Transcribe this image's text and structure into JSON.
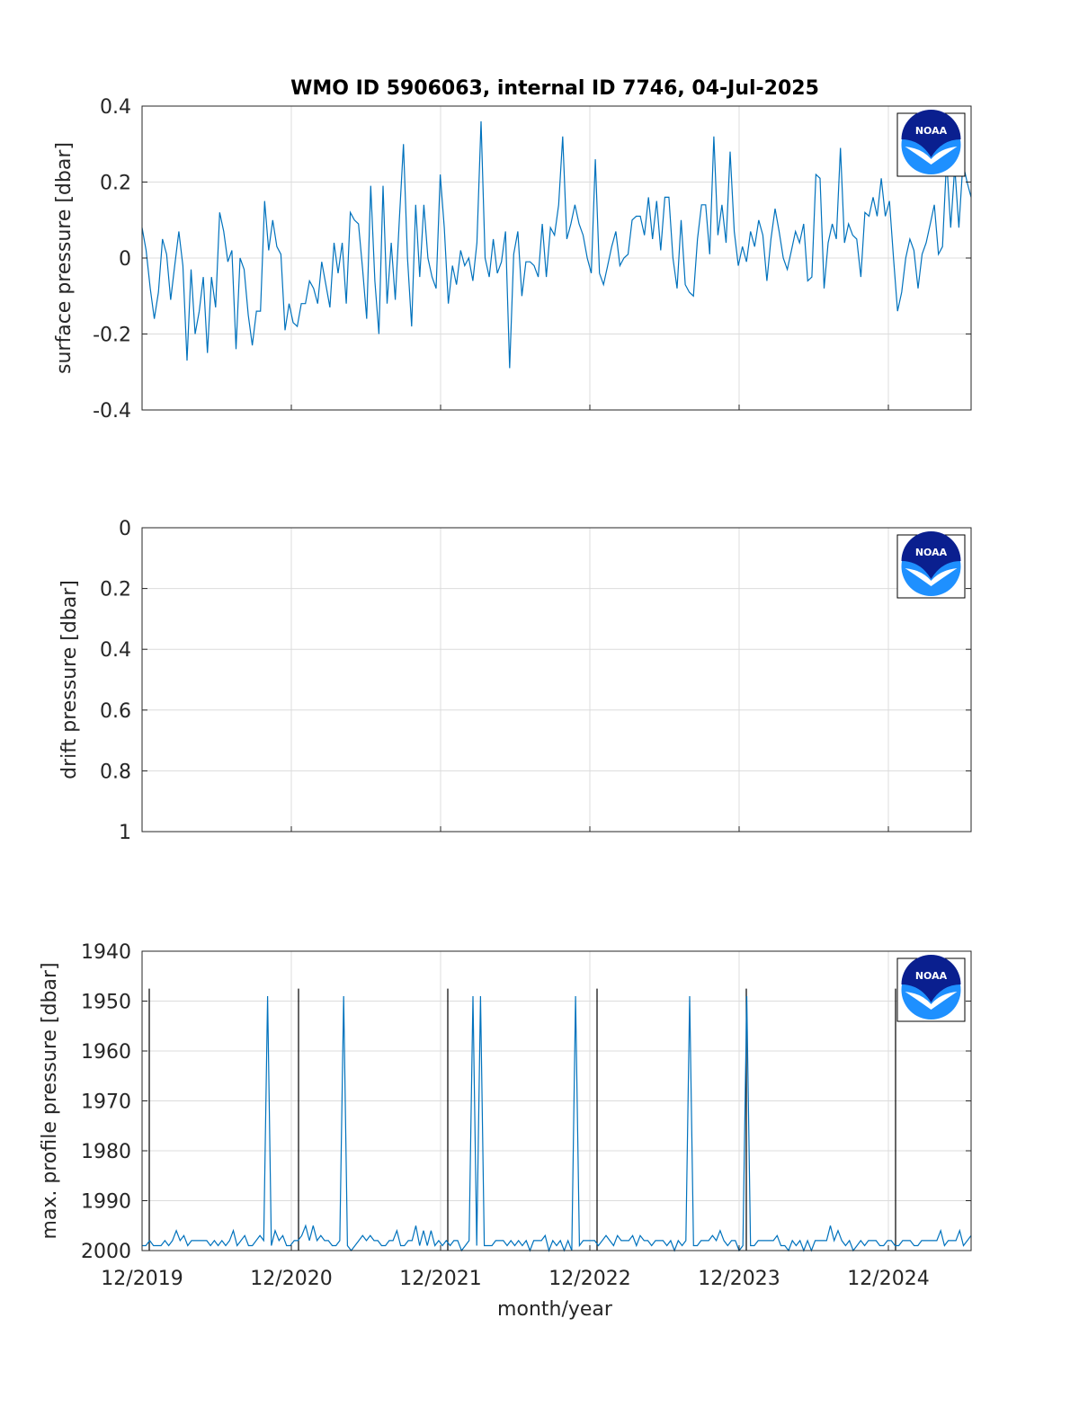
{
  "title": "WMO ID 5906063, internal ID 7746, 04-Jul-2025",
  "xlabel": "month/year",
  "x_tick_labels": [
    "12/2019",
    "12/2020",
    "12/2021",
    "12/2022",
    "12/2023",
    "12/2024"
  ],
  "logo_text": "NOAA",
  "colors": {
    "series": "#0072BD",
    "logo_dark": "#0a1f8f",
    "logo_light": "#1e90ff"
  },
  "chart_data": [
    {
      "type": "line",
      "ylabel": "surface pressure [dbar]",
      "ylim": [
        -0.4,
        0.4
      ],
      "y_reversed": false,
      "y_tick_labels": [
        "-0.4",
        "-0.2",
        "0",
        "0.2",
        "0.4"
      ],
      "grid": true,
      "x_range": [
        "2019-12",
        "2025-07"
      ],
      "series": [
        {
          "values": [
            0.08,
            0.02,
            -0.08,
            -0.16,
            -0.09,
            0.05,
            0.01,
            -0.11,
            -0.02,
            0.07,
            -0.02,
            -0.27,
            -0.03,
            -0.2,
            -0.14,
            -0.05,
            -0.25,
            -0.05,
            -0.13,
            0.12,
            0.07,
            -0.01,
            0.02,
            -0.24,
            0.0,
            -0.03,
            -0.15,
            -0.23,
            -0.14,
            -0.14,
            0.15,
            0.02,
            0.1,
            0.03,
            0.01,
            -0.19,
            -0.12,
            -0.17,
            -0.18,
            -0.12,
            -0.12,
            -0.06,
            -0.08,
            -0.12,
            -0.01,
            -0.07,
            -0.13,
            0.04,
            -0.04,
            0.04,
            -0.12,
            0.12,
            0.1,
            0.09,
            -0.03,
            -0.16,
            0.19,
            -0.06,
            -0.2,
            0.19,
            -0.12,
            0.04,
            -0.11,
            0.1,
            0.3,
            0.0,
            -0.18,
            0.14,
            -0.05,
            0.14,
            0.0,
            -0.05,
            -0.08,
            0.22,
            0.08,
            -0.12,
            -0.02,
            -0.07,
            0.02,
            -0.02,
            0.0,
            -0.06,
            0.04,
            0.36,
            0.0,
            -0.05,
            0.05,
            -0.04,
            -0.01,
            0.07,
            -0.29,
            0.01,
            0.07,
            -0.1,
            -0.01,
            -0.01,
            -0.02,
            -0.05,
            0.09,
            -0.05,
            0.08,
            0.06,
            0.14,
            0.32,
            0.05,
            0.09,
            0.14,
            0.09,
            0.06,
            0.0,
            -0.04,
            0.26,
            -0.04,
            -0.07,
            -0.02,
            0.03,
            0.07,
            -0.02,
            0.0,
            0.01,
            0.1,
            0.11,
            0.11,
            0.06,
            0.16,
            0.05,
            0.15,
            0.02,
            0.16,
            0.16,
            0.0,
            -0.08,
            0.1,
            -0.07,
            -0.09,
            -0.1,
            0.05,
            0.14,
            0.14,
            0.01,
            0.32,
            0.06,
            0.14,
            0.04,
            0.28,
            0.07,
            -0.02,
            0.03,
            -0.01,
            0.07,
            0.03,
            0.1,
            0.06,
            -0.06,
            0.05,
            0.13,
            0.07,
            0.0,
            -0.03,
            0.02,
            0.07,
            0.04,
            0.09,
            -0.06,
            -0.05,
            0.22,
            0.21,
            -0.08,
            0.04,
            0.09,
            0.05,
            0.29,
            0.04,
            0.09,
            0.06,
            0.05,
            -0.05,
            0.12,
            0.11,
            0.16,
            0.11,
            0.21,
            0.11,
            0.15,
            0.0,
            -0.14,
            -0.09,
            0.0,
            0.05,
            0.02,
            -0.08,
            0.01,
            0.04,
            0.09,
            0.14,
            0.01,
            0.03,
            0.26,
            0.08,
            0.24,
            0.08,
            0.25,
            0.2,
            0.16
          ]
        }
      ]
    },
    {
      "type": "line",
      "ylabel": "drift pressure [dbar]",
      "ylim": [
        0,
        1
      ],
      "y_reversed": true,
      "y_tick_labels": [
        "0",
        "0.2",
        "0.4",
        "0.6",
        "0.8",
        "1"
      ],
      "grid": true,
      "x_range": [
        "2019-12",
        "2025-07"
      ],
      "series": []
    },
    {
      "type": "line",
      "ylabel": "max. profile pressure [dbar]",
      "ylim": [
        1940,
        2000
      ],
      "y_reversed": true,
      "y_tick_labels": [
        "1940",
        "1950",
        "1960",
        "1970",
        "1980",
        "1990",
        "2000"
      ],
      "grid": true,
      "x_range": [
        "2019-12",
        "2025-07"
      ],
      "series": [
        {
          "values": [
            1999,
            1999,
            1998,
            1999,
            1999,
            1999,
            1998,
            1999,
            1998,
            1996,
            1998,
            1997,
            1999,
            1998,
            1998,
            1998,
            1998,
            1998,
            1999,
            1998,
            1999,
            1998,
            1999,
            1998,
            1996,
            1999,
            1998,
            1997,
            1999,
            1999,
            1998,
            1997,
            1998,
            1949,
            1999,
            1996,
            1998,
            1997,
            1999,
            1999,
            1998,
            1998,
            1997,
            1995,
            1998,
            1995,
            1998,
            1997,
            1998,
            1998,
            1999,
            1999,
            1998,
            1949,
            1999,
            2001,
            1999,
            1998,
            1997,
            1998,
            1997,
            1998,
            1998,
            1999,
            1999,
            1998,
            1998,
            1996,
            1999,
            1999,
            1998,
            1998,
            1995,
            1999,
            1996,
            1999,
            1996,
            1999,
            1998,
            1999,
            1998,
            1999,
            1998,
            1998,
            2000,
            1999,
            1998,
            1949,
            1999,
            1949,
            1999,
            1999,
            1999,
            1998,
            1998,
            1998,
            1999,
            1998,
            1999,
            1998,
            1999,
            1998,
            2001,
            1998,
            1998,
            1998,
            1997,
            2000,
            1998,
            1999,
            1998,
            2001,
            1998,
            2001,
            1949,
            1999,
            1998,
            1998,
            1998,
            1998,
            1999,
            1998,
            1997,
            1998,
            1999,
            1997,
            1998,
            1998,
            1998,
            1997,
            1999,
            1997,
            1998,
            1998,
            1999,
            1998,
            1998,
            1998,
            1999,
            1998,
            2000,
            1998,
            1999,
            1998,
            1949,
            1999,
            1999,
            1998,
            1998,
            1998,
            1997,
            1998,
            1996,
            1998,
            1999,
            1998,
            1998,
            2000,
            1999,
            1949,
            1999,
            1999,
            1998,
            1998,
            1998,
            1998,
            1998,
            1997,
            1999,
            1999,
            2000,
            1998,
            1999,
            1998,
            2001,
            1998,
            2001,
            1998,
            1998,
            1998,
            1998,
            1995,
            1998,
            1996,
            1998,
            1999,
            1998,
            2000,
            1999,
            1998,
            1999,
            1998,
            1998,
            1998,
            1999,
            1999,
            1998,
            1998,
            1999,
            1999,
            1998,
            1998,
            1998,
            1999,
            1999,
            1998,
            1998,
            1998,
            1998,
            1998,
            1996,
            1999,
            1998,
            1998,
            1998,
            1996,
            1999,
            1998,
            1997
          ]
        }
      ],
      "vertical_markers_at_tick": [
        0,
        1,
        2,
        3,
        4,
        5
      ]
    }
  ]
}
